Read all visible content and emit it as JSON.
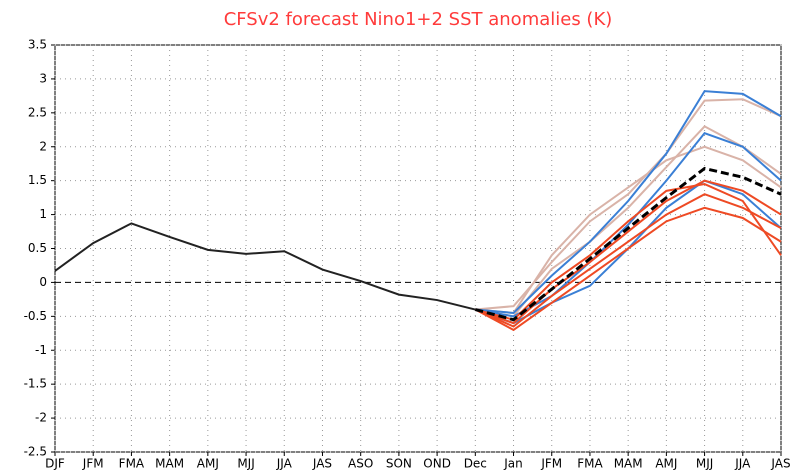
{
  "chart_data": {
    "type": "line",
    "title": "CFSv2 forecast Nino1+2 SST anomalies (K)",
    "categories": [
      "DJF",
      "JFM",
      "FMA",
      "MAM",
      "AMJ",
      "MJJ",
      "JJA",
      "JAS",
      "ASO",
      "SON",
      "OND",
      "Dec",
      "Jan",
      "JFM",
      "FMA",
      "MAM",
      "AMJ",
      "MJJ",
      "JJA",
      "JAS"
    ],
    "ylim": [
      -2.5,
      3.5
    ],
    "yticks": [
      -2.5,
      -2,
      -1.5,
      -1,
      -0.5,
      0,
      0.5,
      1,
      1.5,
      2,
      2.5,
      3,
      3.5
    ],
    "grid": true,
    "zero_line": true,
    "series": [
      {
        "color": "#d9b3a8",
        "values": [
          null,
          null,
          null,
          null,
          null,
          null,
          null,
          null,
          null,
          null,
          null,
          -0.4,
          -0.35,
          0.3,
          0.9,
          1.3,
          1.9,
          2.68,
          2.7,
          2.45
        ]
      },
      {
        "color": "#d9b3a8",
        "values": [
          null,
          null,
          null,
          null,
          null,
          null,
          null,
          null,
          null,
          null,
          null,
          -0.4,
          -0.5,
          0.2,
          0.6,
          1.1,
          1.7,
          2.3,
          2.0,
          1.6
        ]
      },
      {
        "color": "#d9b3a8",
        "values": [
          null,
          null,
          null,
          null,
          null,
          null,
          null,
          null,
          null,
          null,
          null,
          -0.4,
          -0.45,
          0.4,
          1.0,
          1.4,
          1.8,
          2.0,
          1.8,
          1.4
        ]
      },
      {
        "color": "#3a7fd5",
        "values": [
          null,
          null,
          null,
          null,
          null,
          null,
          null,
          null,
          null,
          null,
          null,
          -0.4,
          -0.45,
          0.1,
          0.6,
          1.2,
          1.9,
          2.82,
          2.78,
          2.45
        ]
      },
      {
        "color": "#3a7fd5",
        "values": [
          null,
          null,
          null,
          null,
          null,
          null,
          null,
          null,
          null,
          null,
          null,
          -0.4,
          -0.5,
          -0.2,
          0.3,
          0.85,
          1.5,
          2.2,
          2.0,
          1.5
        ]
      },
      {
        "color": "#3a7fd5",
        "values": [
          null,
          null,
          null,
          null,
          null,
          null,
          null,
          null,
          null,
          null,
          null,
          -0.4,
          -0.6,
          -0.3,
          -0.05,
          0.5,
          1.1,
          1.5,
          1.3,
          0.8
        ]
      },
      {
        "color": "#ee4a24",
        "values": [
          null,
          null,
          null,
          null,
          null,
          null,
          null,
          null,
          null,
          null,
          null,
          -0.4,
          -0.65,
          -0.2,
          0.2,
          0.6,
          1.0,
          1.3,
          1.1,
          0.8
        ]
      },
      {
        "color": "#ee4a24",
        "values": [
          null,
          null,
          null,
          null,
          null,
          null,
          null,
          null,
          null,
          null,
          null,
          -0.4,
          -0.7,
          -0.3,
          0.1,
          0.5,
          0.9,
          1.1,
          0.95,
          0.6
        ]
      },
      {
        "color": "#ee4a24",
        "values": [
          null,
          null,
          null,
          null,
          null,
          null,
          null,
          null,
          null,
          null,
          null,
          -0.4,
          -0.6,
          -0.1,
          0.3,
          0.75,
          1.2,
          1.5,
          1.35,
          1.0
        ]
      },
      {
        "color": "#ee4a24",
        "values": [
          null,
          null,
          null,
          null,
          null,
          null,
          null,
          null,
          null,
          null,
          null,
          -0.4,
          -0.55,
          0.0,
          0.4,
          0.9,
          1.35,
          1.45,
          1.2,
          0.4
        ]
      },
      {
        "color": "#000000",
        "dashed": true,
        "values": [
          null,
          null,
          null,
          null,
          null,
          null,
          null,
          null,
          null,
          null,
          null,
          -0.4,
          -0.55,
          -0.1,
          0.35,
          0.8,
          1.25,
          1.68,
          1.55,
          1.3
        ]
      },
      {
        "color": "#222222",
        "values": [
          0.17,
          0.58,
          0.87,
          0.67,
          0.48,
          0.42,
          0.46,
          0.19,
          0.02,
          -0.18,
          -0.26,
          -0.4,
          null,
          null,
          null,
          null,
          null,
          null,
          null,
          null
        ]
      }
    ]
  }
}
